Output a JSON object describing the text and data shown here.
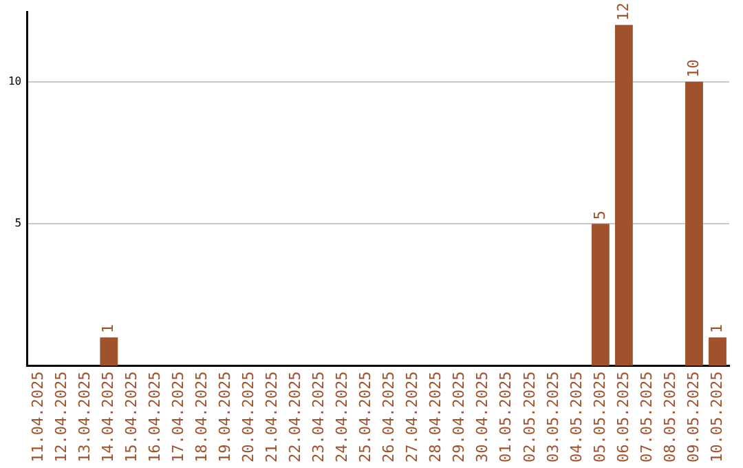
{
  "chart_data": {
    "type": "bar",
    "categories": [
      "11.04.2025",
      "12.04.2025",
      "13.04.2025",
      "14.04.2025",
      "15.04.2025",
      "16.04.2025",
      "17.04.2025",
      "18.04.2025",
      "19.04.2025",
      "20.04.2025",
      "21.04.2025",
      "22.04.2025",
      "23.04.2025",
      "24.04.2025",
      "25.04.2025",
      "26.04.2025",
      "27.04.2025",
      "28.04.2025",
      "29.04.2025",
      "30.04.2025",
      "01.05.2025",
      "02.05.2025",
      "03.05.2025",
      "04.05.2025",
      "05.05.2025",
      "06.05.2025",
      "07.05.2025",
      "08.05.2025",
      "09.05.2025",
      "10.05.2025"
    ],
    "values": [
      0,
      0,
      0,
      1,
      0,
      0,
      0,
      0,
      0,
      0,
      0,
      0,
      0,
      0,
      0,
      0,
      0,
      0,
      0,
      0,
      0,
      0,
      0,
      0,
      5,
      12,
      0,
      0,
      10,
      1
    ],
    "value_labels": [
      null,
      null,
      null,
      "1",
      null,
      null,
      null,
      null,
      null,
      null,
      null,
      null,
      null,
      null,
      null,
      null,
      null,
      null,
      null,
      null,
      null,
      null,
      null,
      null,
      "5",
      "12",
      null,
      null,
      "10",
      "1"
    ],
    "color": "#a0522d",
    "ylim": [
      0,
      12.45
    ],
    "yticks": [
      5,
      10
    ],
    "grid": "y",
    "legend": false
  }
}
